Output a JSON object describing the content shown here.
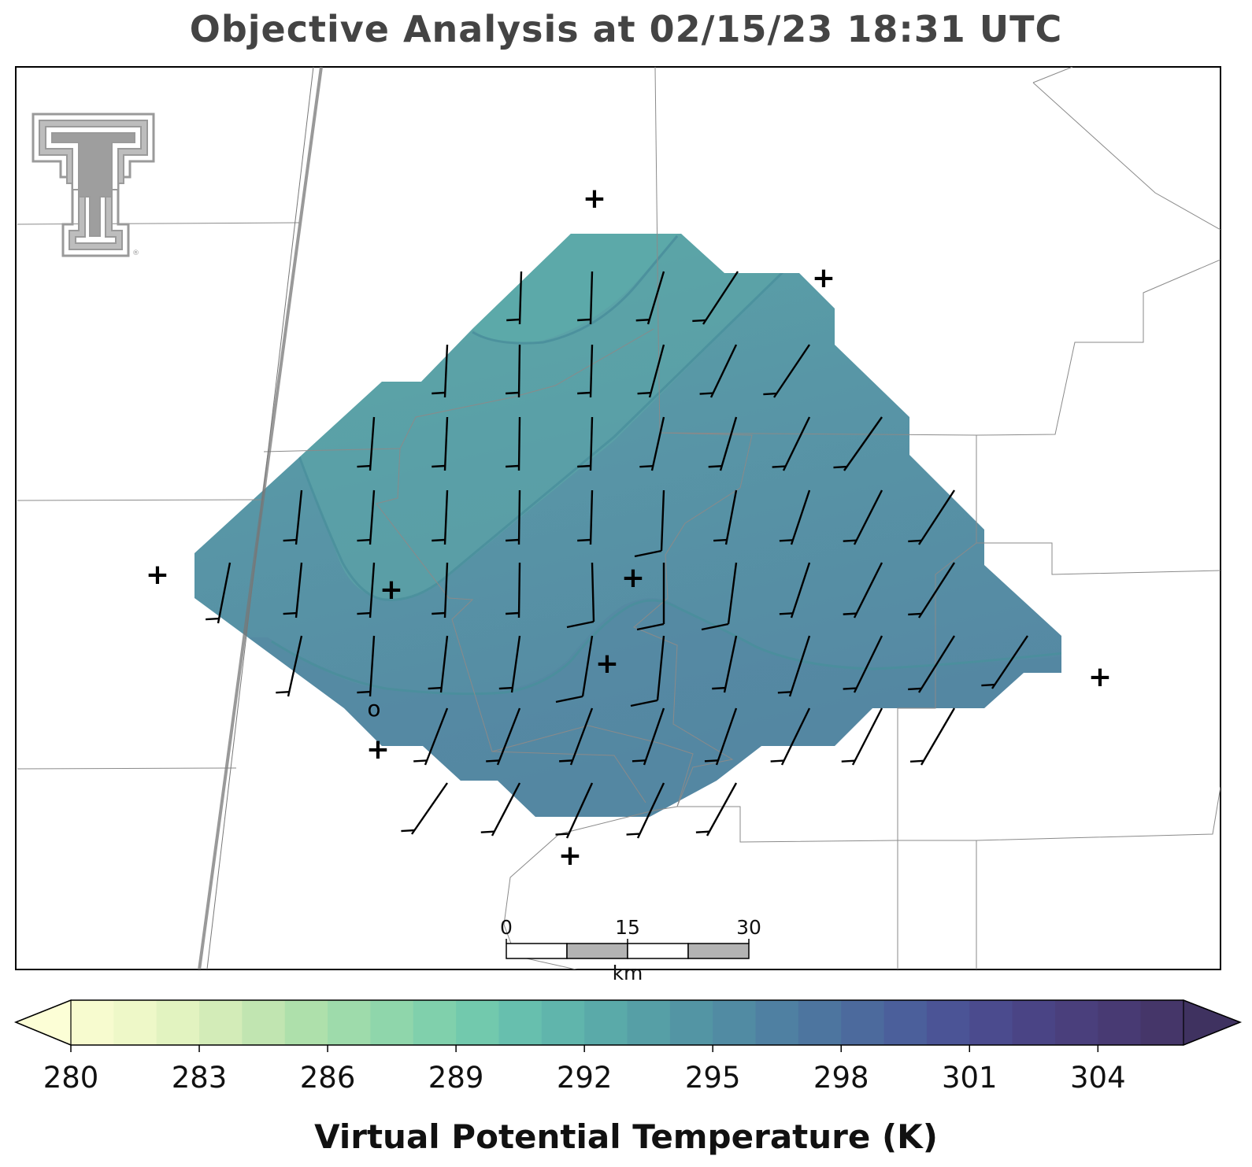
{
  "title": "Objective Analysis at 02/15/23 18:31 UTC",
  "colorbar": {
    "label": "Virtual Potential Temperature (K)",
    "min": 280,
    "max": 306,
    "step": 1,
    "extend": "both",
    "ticks": [
      "280",
      "283",
      "286",
      "289",
      "292",
      "295",
      "298",
      "301",
      "304"
    ],
    "tick_values": [
      280,
      283,
      286,
      289,
      292,
      295,
      298,
      301,
      304
    ],
    "colors": [
      "#f7fbcf",
      "#eef8c8",
      "#e2f3c0",
      "#d3ecb8",
      "#c1e5b1",
      "#aee0ab",
      "#9edbab",
      "#8fd6ab",
      "#80d0ac",
      "#72c9ad",
      "#67bfae",
      "#60b5ac",
      "#5aaaa9",
      "#569fa6",
      "#5395a4",
      "#518ba3",
      "#4f80a2",
      "#4d759f",
      "#4c6a9d",
      "#4b5f9b",
      "#4b5496",
      "#4b4b8e",
      "#4a4485",
      "#4a3f7c",
      "#483a73",
      "#453669"
    ],
    "under_color": "#fcfed6",
    "over_color": "#3f3260"
  },
  "scalebar": {
    "unit": "km",
    "labels": [
      "0",
      "15",
      "30"
    ]
  },
  "logo": {
    "name": "Texas Tech Double T logo",
    "reg_mark": "®"
  },
  "colors": {
    "field_light": "#5aa2a8",
    "field_mid": "#5793a6",
    "field_dark": "#5589a3",
    "contour": "#4a8d9a",
    "boundary": "#8a8a8a",
    "highway": "#7a7a7a"
  },
  "station_symbol": "+",
  "missing_station_symbol": "o"
}
